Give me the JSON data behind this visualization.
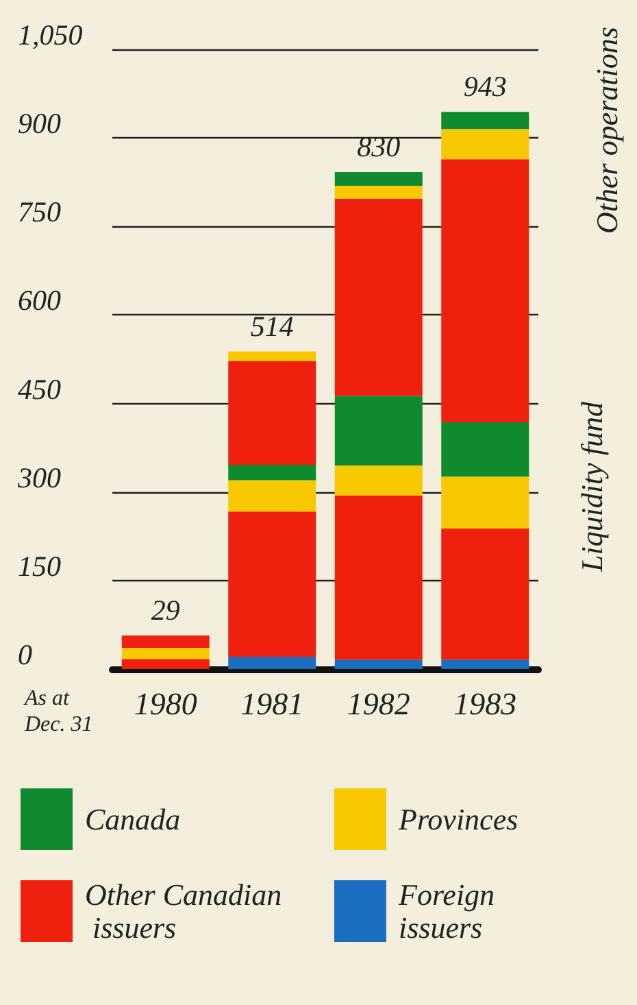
{
  "chart_data": {
    "type": "bar",
    "stacked": true,
    "categories": [
      "1980",
      "1981",
      "1982",
      "1983"
    ],
    "series": [
      {
        "name": "Foreign issuers",
        "color": "#1a6fc0",
        "values": [
          0,
          21,
          16,
          16
        ]
      },
      {
        "name": "Other Canadian issuers",
        "color": "#f0200f",
        "values": [
          17,
          246,
          278,
          222
        ]
      },
      {
        "name": "Provinces",
        "color": "#f8c800",
        "values": [
          19,
          53,
          51,
          88
        ]
      },
      {
        "name": "Canada",
        "color": "#0f8a2e",
        "values": [
          0,
          26,
          118,
          92
        ]
      },
      {
        "color": "#f0200f",
        "values": [
          21,
          176,
          334,
          446
        ]
      },
      {
        "color": "#f8c800",
        "values": [
          0,
          16,
          22,
          51
        ]
      },
      {
        "color": "#0f8a2e",
        "values": [
          0,
          0,
          23,
          29
        ]
      }
    ],
    "ylim": [
      0,
      1050
    ],
    "yticks": [
      0,
      150,
      300,
      450,
      600,
      750,
      900,
      {
        "value": 1050,
        "label": "1,050"
      }
    ],
    "grid": "y",
    "legend": "bottom",
    "annotations": [
      "As at Dec. 31",
      "Other operations",
      "Liquidity fund",
      {
        "text": "29",
        "x": "1980",
        "y": 57
      },
      {
        "text": "514",
        "x": "1981",
        "y": 538
      },
      {
        "text": "830",
        "x": "1982",
        "y": 842
      },
      {
        "text": "943",
        "x": "1983",
        "y": 944
      }
    ]
  }
}
